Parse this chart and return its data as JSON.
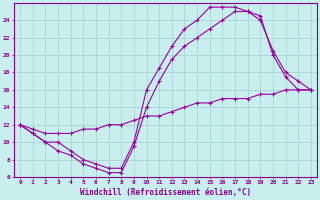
{
  "background_color": "#c8eeee",
  "grid_color": "#aad4d4",
  "line_color": "#990099",
  "xlabel": "Windchill (Refroidissement éolien,°C)",
  "xlim": [
    -0.5,
    23.5
  ],
  "ylim": [
    6,
    26
  ],
  "xticks": [
    0,
    1,
    2,
    3,
    4,
    5,
    6,
    7,
    8,
    9,
    10,
    11,
    12,
    13,
    14,
    15,
    16,
    17,
    18,
    19,
    20,
    21,
    22,
    23
  ],
  "yticks": [
    6,
    8,
    10,
    12,
    14,
    16,
    18,
    20,
    22,
    24
  ],
  "line1_x": [
    0,
    1,
    2,
    3,
    4,
    5,
    6,
    7,
    8,
    9,
    10,
    11,
    12,
    13,
    14,
    15,
    16,
    17,
    18,
    19,
    20,
    21,
    22,
    23
  ],
  "line1_y": [
    12,
    11,
    10,
    9,
    8.5,
    7.5,
    7,
    6.5,
    6.5,
    9.5,
    14,
    17,
    19.5,
    21,
    22,
    23,
    24,
    25,
    25,
    24.5,
    20,
    17.5,
    16,
    16
  ],
  "line2_x": [
    0,
    1,
    2,
    3,
    4,
    5,
    6,
    7,
    8,
    9,
    10,
    11,
    12,
    13,
    14,
    15,
    16,
    17,
    18,
    19,
    20,
    21,
    22,
    23
  ],
  "line2_y": [
    12,
    11,
    10,
    10,
    9,
    8,
    7.5,
    7,
    7,
    10,
    16,
    18.5,
    21,
    23,
    24,
    25.5,
    25.5,
    25.5,
    25,
    24,
    20.5,
    18,
    17,
    16
  ],
  "line3_x": [
    0,
    1,
    2,
    3,
    4,
    5,
    6,
    7,
    8,
    9,
    10,
    11,
    12,
    13,
    14,
    15,
    16,
    17,
    18,
    19,
    20,
    21,
    22,
    23
  ],
  "line3_y": [
    12,
    11.5,
    11,
    11,
    11,
    11.5,
    11.5,
    12,
    12,
    12.5,
    13,
    13,
    13.5,
    14,
    14.5,
    14.5,
    15,
    15,
    15,
    15.5,
    15.5,
    16,
    16,
    16
  ],
  "tick_fontsize": 4.5,
  "xlabel_fontsize": 5.5
}
